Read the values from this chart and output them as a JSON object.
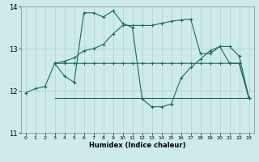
{
  "xlabel": "Humidex (Indice chaleur)",
  "xlim": [
    -0.5,
    23.5
  ],
  "ylim": [
    11,
    14
  ],
  "yticks": [
    11,
    12,
    13,
    14
  ],
  "xticks": [
    0,
    1,
    2,
    3,
    4,
    5,
    6,
    7,
    8,
    9,
    10,
    11,
    12,
    13,
    14,
    15,
    16,
    17,
    18,
    19,
    20,
    21,
    22,
    23
  ],
  "background_color": "#ceeaea",
  "line_color": "#1a6b60",
  "line1_x": [
    0,
    1,
    2,
    3,
    4,
    5,
    6,
    7,
    8,
    9,
    10,
    11,
    12,
    13,
    14,
    15,
    16,
    17,
    18,
    19,
    20,
    21,
    22,
    23
  ],
  "line1_y": [
    11.95,
    12.05,
    12.1,
    12.65,
    12.35,
    12.2,
    13.85,
    13.85,
    13.75,
    13.9,
    13.6,
    13.5,
    11.8,
    11.62,
    11.62,
    11.68,
    12.3,
    12.55,
    12.75,
    12.95,
    13.05,
    13.05,
    12.82,
    11.82
  ],
  "line1_markers": [
    0,
    1,
    2,
    3,
    4,
    5,
    6,
    7,
    8,
    9,
    10,
    11,
    12,
    13,
    14,
    15,
    16,
    17,
    18,
    19,
    20,
    21,
    22,
    23
  ],
  "line2_x": [
    3,
    4,
    5,
    6,
    7,
    8,
    9,
    10,
    11,
    12,
    13,
    14,
    15,
    16,
    17,
    18,
    19,
    20,
    21,
    22,
    23
  ],
  "line2_y": [
    12.65,
    12.65,
    12.65,
    12.65,
    12.65,
    12.65,
    12.65,
    12.65,
    12.65,
    12.65,
    12.65,
    12.65,
    12.65,
    12.65,
    12.65,
    12.65,
    12.65,
    12.65,
    12.65,
    12.65,
    11.82
  ],
  "line3_x": [
    3,
    5,
    6,
    7,
    8,
    9,
    10,
    11,
    12,
    13,
    14,
    15,
    16,
    17,
    18,
    19,
    20,
    21,
    22,
    23
  ],
  "line3_y": [
    11.82,
    11.82,
    11.82,
    11.82,
    11.82,
    11.82,
    11.82,
    11.82,
    11.82,
    11.82,
    11.82,
    11.82,
    11.82,
    11.82,
    11.82,
    11.82,
    11.82,
    11.82,
    11.82,
    11.82
  ],
  "line4_x": [
    3,
    4,
    5,
    6,
    7,
    8,
    9,
    10,
    11,
    12,
    13,
    14,
    15,
    16,
    17,
    18,
    19,
    20,
    21,
    22,
    23
  ],
  "line4_y": [
    12.65,
    12.7,
    12.78,
    12.95,
    13.0,
    13.1,
    13.35,
    13.55,
    13.55,
    13.55,
    13.55,
    13.6,
    13.65,
    13.68,
    13.7,
    12.88,
    12.88,
    13.05,
    12.65,
    12.65,
    11.82
  ]
}
